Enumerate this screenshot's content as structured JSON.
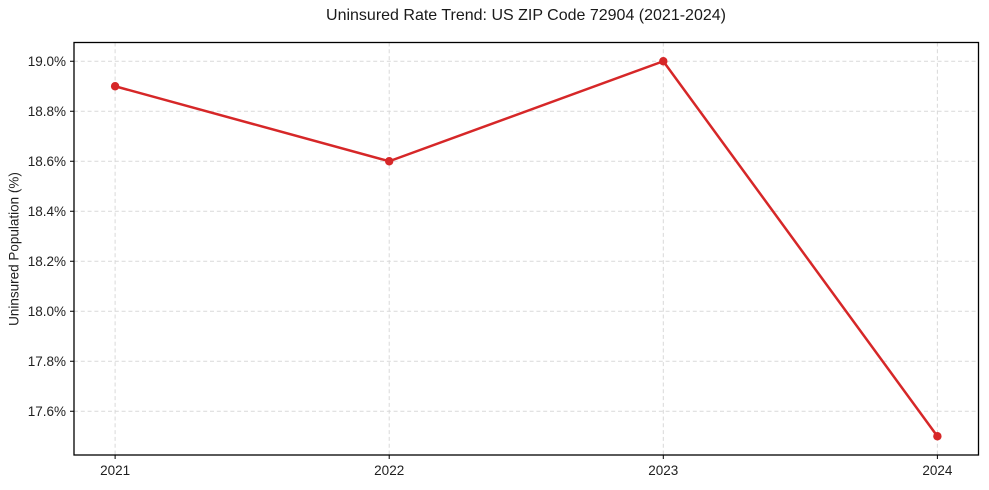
{
  "chart_data": {
    "type": "line",
    "title": "Uninsured Rate Trend: US ZIP Code 72904 (2021-2024)",
    "xlabel": "",
    "ylabel": "Uninsured Population (%)",
    "x": [
      2021,
      2022,
      2023,
      2024
    ],
    "values": [
      18.9,
      18.6,
      19.0,
      17.5
    ],
    "x_ticks": [
      2021,
      2022,
      2023,
      2024
    ],
    "x_tick_labels": [
      "2021",
      "2022",
      "2023",
      "2024"
    ],
    "y_ticks": [
      17.6,
      17.8,
      18.0,
      18.2,
      18.4,
      18.6,
      18.8,
      19.0
    ],
    "y_tick_labels": [
      "17.6%",
      "17.8%",
      "18.0%",
      "18.2%",
      "18.4%",
      "18.6%",
      "18.8%",
      "19.0%"
    ],
    "xlim": [
      2020.85,
      2024.15
    ],
    "ylim": [
      17.425,
      19.075
    ],
    "grid": true,
    "grid_style": "dashed",
    "legend_position": "none",
    "colors": {
      "line": "#d62728",
      "marker": "#d62728",
      "grid": "#d9d9d9",
      "spine": "#000000",
      "background": "#ffffff",
      "text": "#1f1f1f"
    }
  }
}
